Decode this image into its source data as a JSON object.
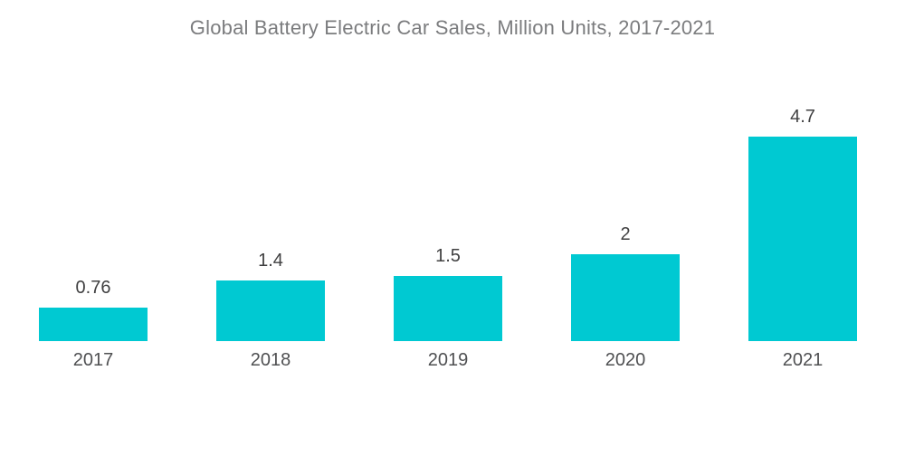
{
  "title": "Global Battery Electric Car Sales, Million Units, 2017-2021",
  "colors": {
    "background": "#FFFFFF",
    "bar": "#00C9D2",
    "title_text": "#7B7C7E",
    "value_label_text": "#404041",
    "year_label_text": "#4F5052"
  },
  "chart_data": {
    "type": "bar",
    "title": "Global Battery Electric Car Sales, Million Units, 2017-2021",
    "categories": [
      "2017",
      "2018",
      "2019",
      "2020",
      "2021"
    ],
    "values": [
      0.76,
      1.4,
      1.5,
      2,
      4.7
    ],
    "data_labels": [
      "0.76",
      "1.4",
      "1.5",
      "2",
      "4.7"
    ],
    "xlabel": "",
    "ylabel": "",
    "ylim": [
      0,
      5
    ],
    "grid": false,
    "legend": false,
    "axes_visible": false,
    "bar_color": "#00C9D2",
    "orientation": "vertical",
    "data_labels_position": "above-bar"
  }
}
